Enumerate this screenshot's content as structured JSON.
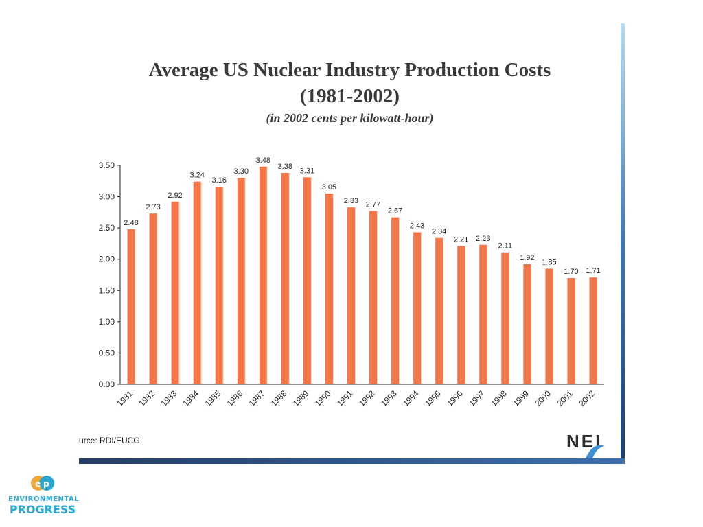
{
  "slide": {
    "title_line1": "Average US Nuclear Industry Production Costs",
    "title_line2": "(1981-2002)",
    "subtitle": "(in  2002 cents per kilowatt-hour)",
    "source": "urce: RDI/EUCG",
    "nei_logo_text": "NEI"
  },
  "footer_logo": {
    "line1": "ENVIRONMENTAL",
    "line2": "PROGRESS"
  },
  "colors": {
    "bar": "#f2764a",
    "axis": "#222222",
    "text": "#222222"
  },
  "chart_data": {
    "type": "bar",
    "title": "Average US Nuclear Industry Production Costs (1981-2002)",
    "subtitle": "(in  2002 cents per kilowatt-hour)",
    "categories": [
      "1981",
      "1982",
      "1983",
      "1984",
      "1985",
      "1986",
      "1987",
      "1988",
      "1989",
      "1990",
      "1991",
      "1992",
      "1993",
      "1994",
      "1995",
      "1996",
      "1997",
      "1998",
      "1999",
      "2000",
      "2001",
      "2002"
    ],
    "values": [
      2.48,
      2.73,
      2.92,
      3.24,
      3.16,
      3.3,
      3.48,
      3.38,
      3.31,
      3.05,
      2.83,
      2.77,
      2.67,
      2.43,
      2.34,
      2.21,
      2.23,
      2.11,
      1.92,
      1.85,
      1.7,
      1.71
    ],
    "value_labels": [
      "2.48",
      "2.73",
      "2.92",
      "3.24",
      "3.16",
      "3.30",
      "3.48",
      "3.38",
      "3.31",
      "3.05",
      "2.83",
      "2.77",
      "2.67",
      "2.43",
      "2.34",
      "2.21",
      "2.23",
      "2.11",
      "1.92",
      "1.85",
      "1.70",
      "1.71"
    ],
    "yticks": [
      "0.00",
      "0.50",
      "1.00",
      "1.50",
      "2.00",
      "2.50",
      "3.00",
      "3.50"
    ],
    "ylim": [
      0,
      3.5
    ],
    "xlabel": "",
    "ylabel": "",
    "grid": false,
    "legend": false
  }
}
